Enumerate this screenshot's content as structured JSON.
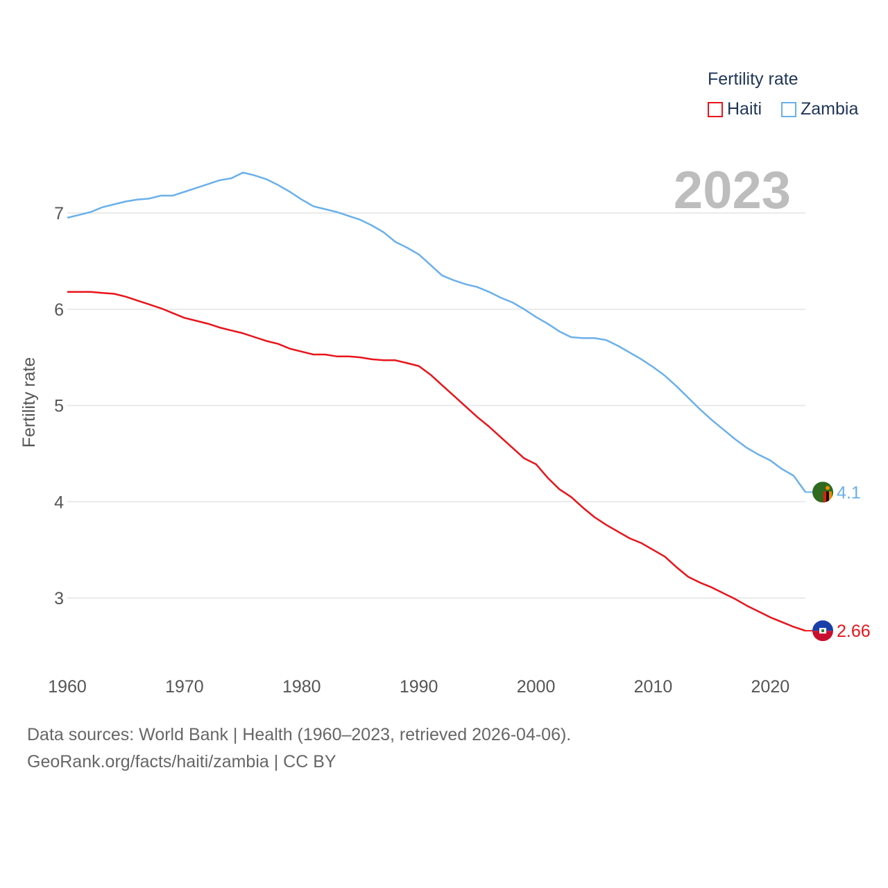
{
  "chart_data": {
    "type": "line",
    "title": "",
    "big_year_label": "2023",
    "ylabel": "Fertility rate",
    "xlabel": "",
    "xlim": [
      1960,
      2023
    ],
    "ylim": [
      2.5,
      7.5
    ],
    "x_ticks": [
      "1960",
      "1970",
      "1980",
      "1990",
      "2000",
      "2010",
      "2020"
    ],
    "y_ticks": [
      "3",
      "4",
      "5",
      "6",
      "7"
    ],
    "grid": true,
    "legend": {
      "title": "Fertility rate",
      "position": "top-right"
    },
    "x": [
      1960,
      1961,
      1962,
      1963,
      1964,
      1965,
      1966,
      1967,
      1968,
      1969,
      1970,
      1971,
      1972,
      1973,
      1974,
      1975,
      1976,
      1977,
      1978,
      1979,
      1980,
      1981,
      1982,
      1983,
      1984,
      1985,
      1986,
      1987,
      1988,
      1989,
      1990,
      1991,
      1992,
      1993,
      1994,
      1995,
      1996,
      1997,
      1998,
      1999,
      2000,
      2001,
      2002,
      2003,
      2004,
      2005,
      2006,
      2007,
      2008,
      2009,
      2010,
      2011,
      2012,
      2013,
      2014,
      2015,
      2016,
      2017,
      2018,
      2019,
      2020,
      2021,
      2022,
      2023
    ],
    "series": [
      {
        "name": "Haiti",
        "color": "#e8141b",
        "end_label": "2.66",
        "flag_icon": "haiti-flag-icon",
        "values": [
          6.18,
          6.18,
          6.18,
          6.17,
          6.16,
          6.13,
          6.09,
          6.05,
          6.01,
          5.96,
          5.91,
          5.88,
          5.85,
          5.81,
          5.78,
          5.75,
          5.71,
          5.67,
          5.64,
          5.59,
          5.56,
          5.53,
          5.53,
          5.51,
          5.51,
          5.5,
          5.48,
          5.47,
          5.47,
          5.44,
          5.41,
          5.32,
          5.21,
          5.1,
          4.99,
          4.88,
          4.78,
          4.67,
          4.56,
          4.45,
          4.39,
          4.25,
          4.13,
          4.05,
          3.94,
          3.84,
          3.76,
          3.69,
          3.62,
          3.57,
          3.5,
          3.43,
          3.32,
          3.22,
          3.16,
          3.11,
          3.05,
          2.99,
          2.92,
          2.86,
          2.8,
          2.75,
          2.7,
          2.66
        ]
      },
      {
        "name": "Zambia",
        "color": "#6ab0ea",
        "end_label": "4.1",
        "flag_icon": "zambia-flag-icon",
        "values": [
          6.95,
          6.98,
          7.01,
          7.06,
          7.09,
          7.12,
          7.14,
          7.15,
          7.18,
          7.18,
          7.22,
          7.26,
          7.3,
          7.34,
          7.36,
          7.42,
          7.39,
          7.35,
          7.29,
          7.22,
          7.14,
          7.07,
          7.04,
          7.01,
          6.97,
          6.93,
          6.87,
          6.8,
          6.7,
          6.64,
          6.57,
          6.46,
          6.35,
          6.3,
          6.26,
          6.23,
          6.18,
          6.12,
          6.07,
          6.0,
          5.92,
          5.85,
          5.77,
          5.71,
          5.7,
          5.7,
          5.68,
          5.62,
          5.55,
          5.48,
          5.4,
          5.31,
          5.2,
          5.08,
          4.96,
          4.85,
          4.75,
          4.65,
          4.56,
          4.49,
          4.43,
          4.34,
          4.27,
          4.1
        ]
      }
    ]
  },
  "footer": {
    "line1": "Data sources: World Bank | Health (1960–2023, retrieved 2026-04-06).",
    "line2": "GeoRank.org/facts/haiti/zambia | CC BY"
  }
}
